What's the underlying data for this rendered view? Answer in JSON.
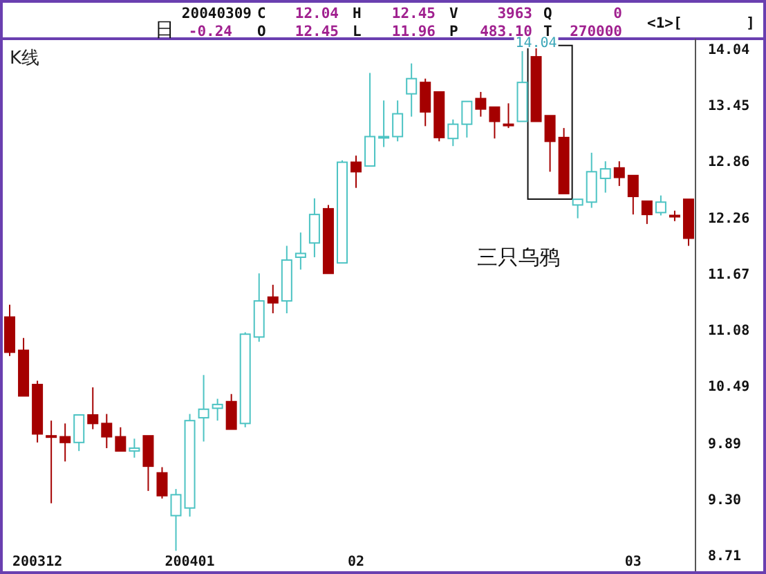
{
  "chart_data": {
    "type": "candlestick",
    "title": "K线",
    "annotations": [
      "20040309",
      "C",
      "12.04",
      "H",
      "12.45",
      "V",
      "3963",
      "Q",
      "0",
      "<1>[",
      "]",
      "日",
      "-0.24",
      "O",
      "12.45",
      "L",
      "11.96",
      "P",
      "483.10",
      "T",
      "270000",
      {
        "text": "14.04",
        "y": 14.04
      },
      "三只乌鸦"
    ],
    "categories": [
      null,
      null,
      "200312",
      null,
      null,
      null,
      null,
      null,
      null,
      null,
      null,
      null,
      null,
      "200401",
      null,
      null,
      null,
      null,
      null,
      null,
      null,
      null,
      null,
      null,
      null,
      "02",
      null,
      null,
      null,
      null,
      null,
      null,
      null,
      null,
      null,
      null,
      null,
      null,
      null,
      null,
      null,
      null,
      null,
      null,
      null,
      "03",
      null,
      null,
      null,
      null
    ],
    "ohlc": [
      [
        11.21,
        11.34,
        10.8,
        10.84
      ],
      [
        10.86,
        10.99,
        10.38,
        10.38
      ],
      [
        10.5,
        10.54,
        9.89,
        9.98
      ],
      [
        9.96,
        10.12,
        9.25,
        9.95
      ],
      [
        9.95,
        10.09,
        9.69,
        9.89
      ],
      [
        9.89,
        10.18,
        9.8,
        10.18
      ],
      [
        10.18,
        10.47,
        10.03,
        10.09
      ],
      [
        10.09,
        10.19,
        9.83,
        9.95
      ],
      [
        9.95,
        10.05,
        9.8,
        9.8
      ],
      [
        9.8,
        9.93,
        9.73,
        9.83
      ],
      [
        9.96,
        9.96,
        9.38,
        9.64
      ],
      [
        9.57,
        9.63,
        9.3,
        9.33
      ],
      [
        9.12,
        9.4,
        8.75,
        9.34
      ],
      [
        9.2,
        10.19,
        9.11,
        10.12
      ],
      [
        10.15,
        10.6,
        9.9,
        10.24
      ],
      [
        10.25,
        10.35,
        10.12,
        10.29
      ],
      [
        10.32,
        10.4,
        10.03,
        10.03
      ],
      [
        10.09,
        11.05,
        10.05,
        11.03
      ],
      [
        11.0,
        11.67,
        10.95,
        11.38
      ],
      [
        11.42,
        11.55,
        11.25,
        11.36
      ],
      [
        11.38,
        11.96,
        11.25,
        11.81
      ],
      [
        11.84,
        12.1,
        11.71,
        11.88
      ],
      [
        11.99,
        12.46,
        11.84,
        12.29
      ],
      [
        12.35,
        12.39,
        11.67,
        11.67
      ],
      [
        11.78,
        12.86,
        11.78,
        12.84
      ],
      [
        12.84,
        12.91,
        12.57,
        12.74
      ],
      [
        12.8,
        13.78,
        12.8,
        13.11
      ],
      [
        13.11,
        13.49,
        13.0,
        13.11
      ],
      [
        13.11,
        13.49,
        13.06,
        13.35
      ],
      [
        13.56,
        13.88,
        13.32,
        13.72
      ],
      [
        13.68,
        13.72,
        13.22,
        13.37
      ],
      [
        13.58,
        13.58,
        13.06,
        13.1
      ],
      [
        13.09,
        13.29,
        13.01,
        13.24
      ],
      [
        13.24,
        13.48,
        13.1,
        13.48
      ],
      [
        13.51,
        13.58,
        13.32,
        13.4
      ],
      [
        13.42,
        13.42,
        13.09,
        13.27
      ],
      [
        13.24,
        13.46,
        13.2,
        13.24
      ],
      [
        13.27,
        14.01,
        13.27,
        13.68
      ],
      [
        13.95,
        14.04,
        13.27,
        13.27
      ],
      [
        13.33,
        13.33,
        12.74,
        13.06
      ],
      [
        13.1,
        13.2,
        12.51,
        12.51
      ],
      [
        12.39,
        12.45,
        12.25,
        12.45
      ],
      [
        12.42,
        12.94,
        12.36,
        12.74
      ],
      [
        12.67,
        12.85,
        12.52,
        12.77
      ],
      [
        12.78,
        12.85,
        12.59,
        12.68
      ],
      [
        12.7,
        12.7,
        12.29,
        12.48
      ],
      [
        12.43,
        12.43,
        12.19,
        12.29
      ],
      [
        12.31,
        12.49,
        12.28,
        12.42
      ],
      [
        12.28,
        12.33,
        12.22,
        12.28
      ],
      [
        12.45,
        12.45,
        11.96,
        12.04
      ]
    ],
    "colors": [
      "#a50000",
      "#a50000",
      "#a50000",
      "#a50000",
      "#a50000",
      "#4cc3c3",
      "#a50000",
      "#a50000",
      "#a50000",
      "#4cc3c3",
      "#a50000",
      "#a50000",
      "#4cc3c3",
      "#4cc3c3",
      "#4cc3c3",
      "#4cc3c3",
      "#a50000",
      "#4cc3c3",
      "#4cc3c3",
      "#a50000",
      "#4cc3c3",
      "#4cc3c3",
      "#4cc3c3",
      "#a50000",
      "#4cc3c3",
      "#a50000",
      "#4cc3c3",
      "#4cc3c3",
      "#4cc3c3",
      "#4cc3c3",
      "#a50000",
      "#a50000",
      "#4cc3c3",
      "#4cc3c3",
      "#a50000",
      "#a50000",
      "#a50000",
      "#4cc3c3",
      "#a50000",
      "#a50000",
      "#a50000",
      "#4cc3c3",
      "#4cc3c3",
      "#4cc3c3",
      "#a50000",
      "#a50000",
      "#a50000",
      "#4cc3c3",
      "#a50000",
      "#a50000"
    ],
    "ylim": [
      8.52,
      14.14
    ],
    "yticks": [
      14.04,
      13.45,
      12.86,
      12.26,
      11.67,
      11.08,
      10.49,
      9.89,
      {
        "value": 9.3,
        "label": "9.30"
      },
      8.71
    ]
  }
}
